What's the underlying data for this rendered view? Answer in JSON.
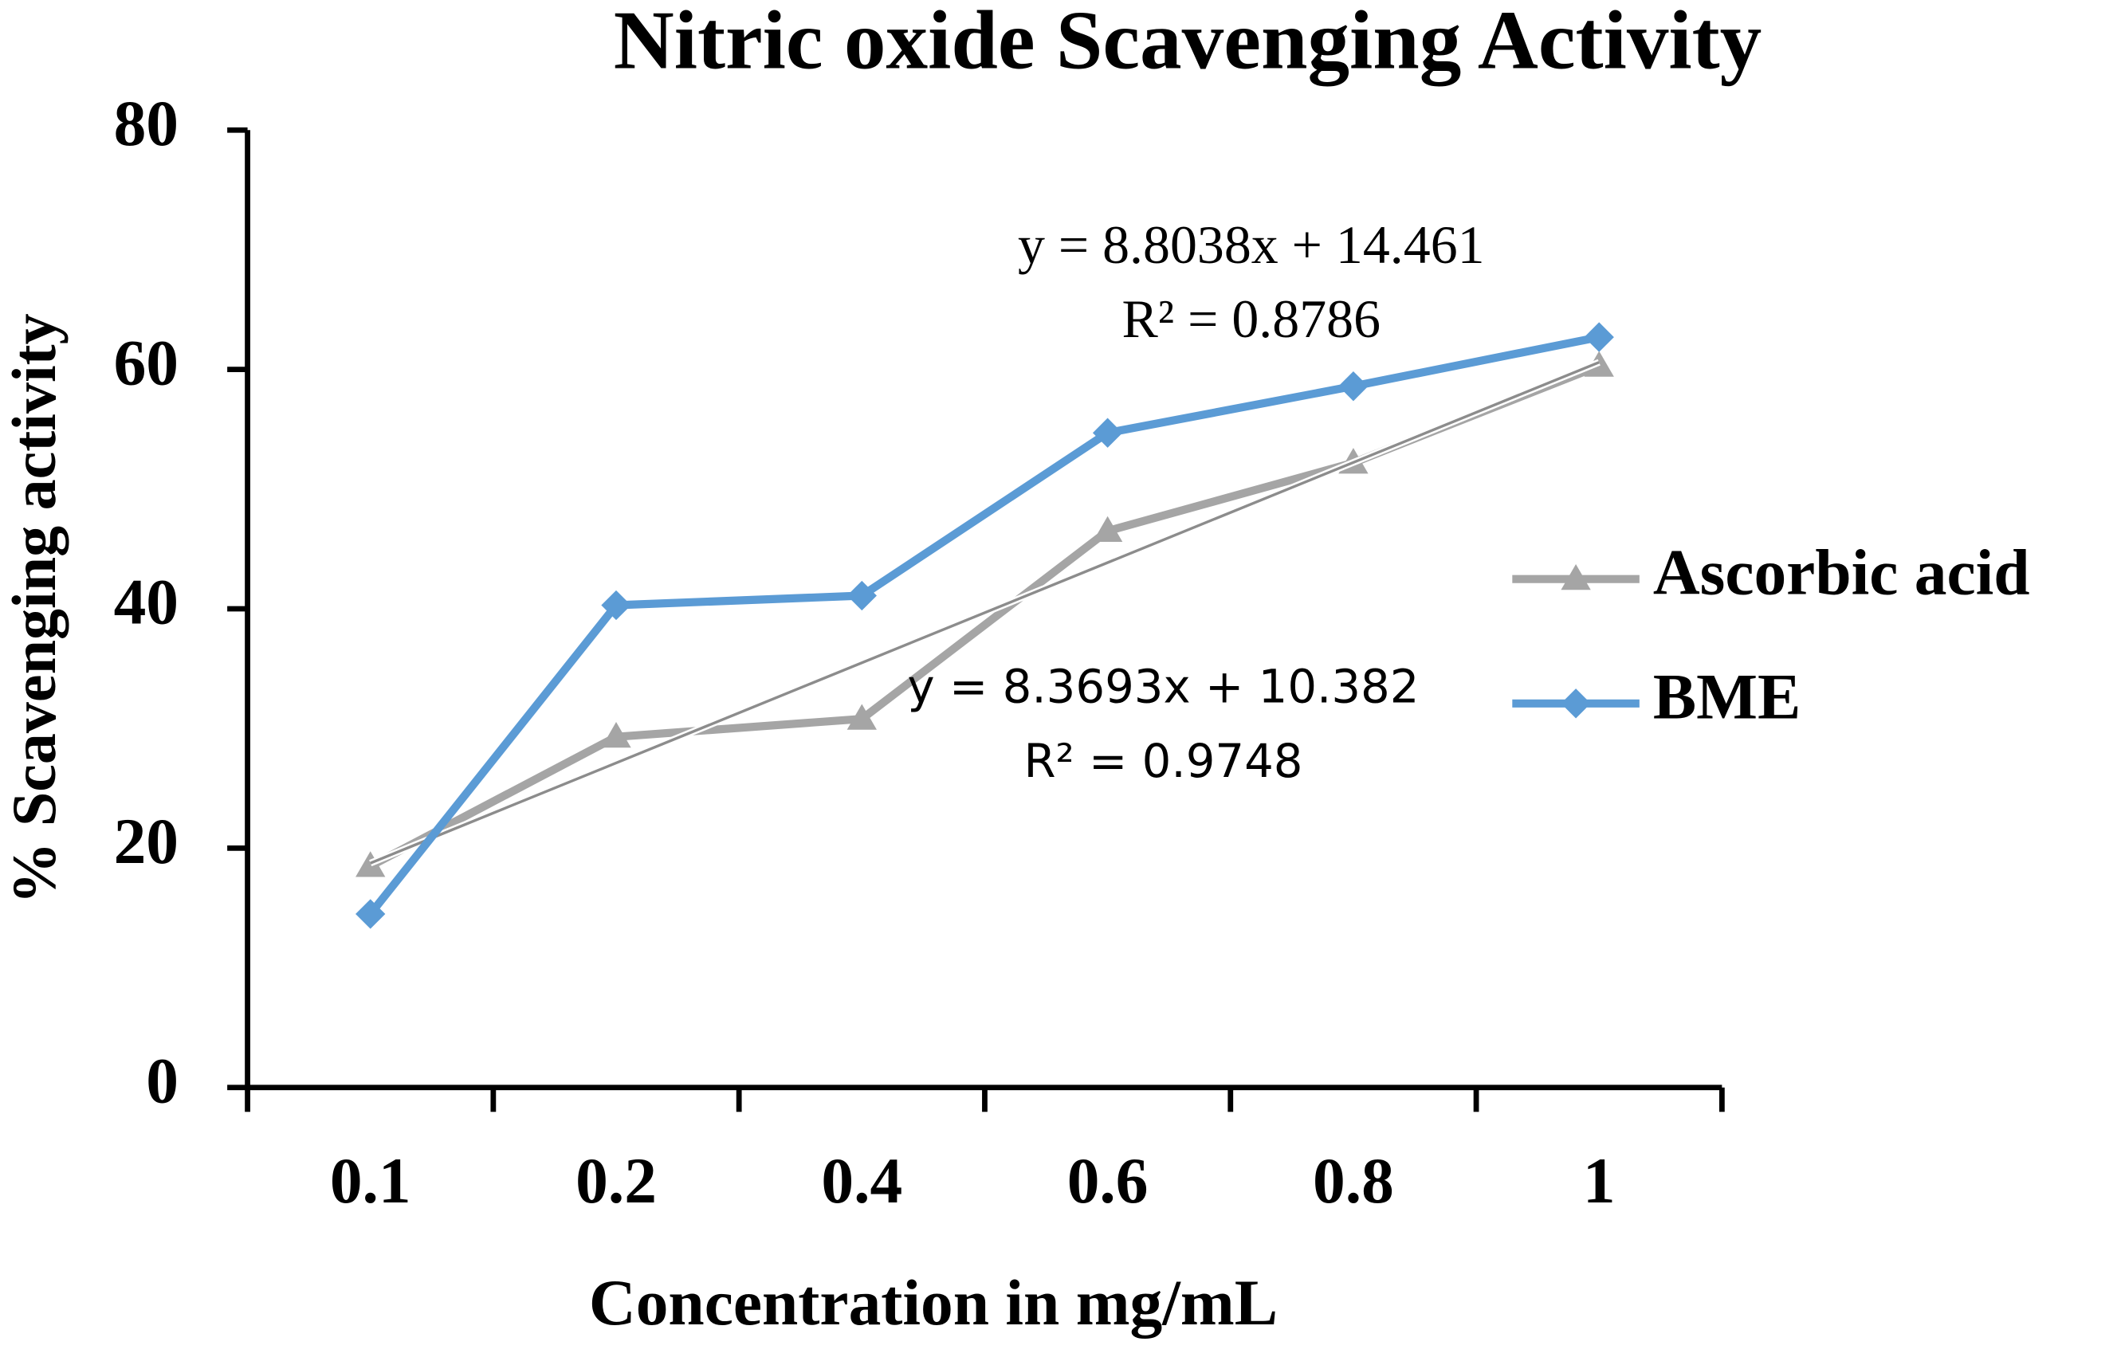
{
  "chart_data": {
    "type": "line",
    "title": "Nitric oxide Scavenging Activity",
    "x_label": "Concentration in mg/mL",
    "y_label": "% Scavenging activity",
    "categories": [
      "0.1",
      "0.2",
      "0.4",
      "0.6",
      "0.8",
      "1"
    ],
    "ylim": [
      0,
      80
    ],
    "yticks": [
      0,
      20,
      40,
      60,
      80
    ],
    "legend": "right",
    "series": [
      {
        "name": "Ascorbic acid",
        "color": "#a5a5a5",
        "marker": "triangle",
        "values": [
          18.5,
          29.3,
          30.8,
          46.5,
          52.2,
          60.3
        ],
        "trendline": {
          "slope": 8.3693,
          "intercept": 10.382,
          "drawn": true,
          "color": "#8c8c8c",
          "label": "y = 8.3693x + 10.382",
          "r2_label": "R² = 0.9748"
        }
      },
      {
        "name": "BME",
        "color": "#5b9bd5",
        "marker": "diamond",
        "values": [
          14.5,
          40.3,
          41.1,
          54.7,
          58.6,
          62.7
        ],
        "trendline": {
          "slope": 8.8038,
          "intercept": 14.461,
          "drawn": false,
          "color": "#5b9bd5",
          "label": "y = 8.8038x + 14.461",
          "r2_label": "R² = 0.8786"
        }
      }
    ]
  }
}
